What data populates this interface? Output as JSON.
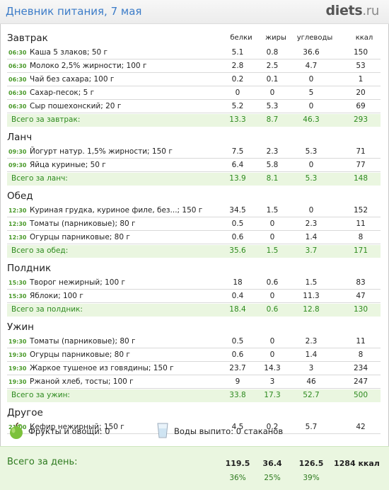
{
  "header": {
    "title": "Дневник питания, 7 мая",
    "logo_main": "diets",
    "logo_suffix": ".ru"
  },
  "columns": {
    "protein": "белки",
    "fat": "жиры",
    "carbs": "углеводы",
    "kcal": "ккал"
  },
  "meals": [
    {
      "title": "Завтрак",
      "items": [
        {
          "time": "06:30",
          "name": "Каша 5 злаков; 50 г",
          "p": "5.1",
          "f": "0.8",
          "c": "36.6",
          "k": "150"
        },
        {
          "time": "06:30",
          "name": "Молоко 2,5% жирности; 100 г",
          "p": "2.8",
          "f": "2.5",
          "c": "4.7",
          "k": "53"
        },
        {
          "time": "06:30",
          "name": "Чай без сахара; 100 г",
          "p": "0.2",
          "f": "0.1",
          "c": "0",
          "k": "1"
        },
        {
          "time": "06:30",
          "name": "Сахар-песок; 5 г",
          "p": "0",
          "f": "0",
          "c": "5",
          "k": "20"
        },
        {
          "time": "06:30",
          "name": "Сыр пошехонский; 20 г",
          "p": "5.2",
          "f": "5.3",
          "c": "0",
          "k": "69"
        }
      ],
      "total": {
        "label": "Всего за завтрак:",
        "p": "13.3",
        "f": "8.7",
        "c": "46.3",
        "k": "293"
      }
    },
    {
      "title": "Ланч",
      "items": [
        {
          "time": "09:30",
          "name": "Йогурт натур. 1,5% жирности; 150 г",
          "p": "7.5",
          "f": "2.3",
          "c": "5.3",
          "k": "71"
        },
        {
          "time": "09:30",
          "name": "Яйца куриные; 50 г",
          "p": "6.4",
          "f": "5.8",
          "c": "0",
          "k": "77"
        }
      ],
      "total": {
        "label": "Всего за ланч:",
        "p": "13.9",
        "f": "8.1",
        "c": "5.3",
        "k": "148"
      }
    },
    {
      "title": "Обед",
      "items": [
        {
          "time": "12:30",
          "name": "Куриная грудка, куриное филе, без...; 150 г",
          "p": "34.5",
          "f": "1.5",
          "c": "0",
          "k": "152"
        },
        {
          "time": "12:30",
          "name": "Томаты (парниковые); 80 г",
          "p": "0.5",
          "f": "0",
          "c": "2.3",
          "k": "11"
        },
        {
          "time": "12:30",
          "name": "Огурцы парниковые; 80 г",
          "p": "0.6",
          "f": "0",
          "c": "1.4",
          "k": "8"
        }
      ],
      "total": {
        "label": "Всего за обед:",
        "p": "35.6",
        "f": "1.5",
        "c": "3.7",
        "k": "171"
      }
    },
    {
      "title": "Полдник",
      "items": [
        {
          "time": "15:30",
          "name": "Творог нежирный; 100 г",
          "p": "18",
          "f": "0.6",
          "c": "1.5",
          "k": "83"
        },
        {
          "time": "15:30",
          "name": "Яблоки; 100 г",
          "p": "0.4",
          "f": "0",
          "c": "11.3",
          "k": "47"
        }
      ],
      "total": {
        "label": "Всего за полдник:",
        "p": "18.4",
        "f": "0.6",
        "c": "12.8",
        "k": "130"
      }
    },
    {
      "title": "Ужин",
      "items": [
        {
          "time": "19:30",
          "name": "Томаты (парниковые); 80 г",
          "p": "0.5",
          "f": "0",
          "c": "2.3",
          "k": "11"
        },
        {
          "time": "19:30",
          "name": "Огурцы парниковые; 80 г",
          "p": "0.6",
          "f": "0",
          "c": "1.4",
          "k": "8"
        },
        {
          "time": "19:30",
          "name": "Жаркое тушеное из говядины; 150 г",
          "p": "23.7",
          "f": "14.3",
          "c": "3",
          "k": "234"
        },
        {
          "time": "19:30",
          "name": "Ржаной хлеб, тосты; 100 г",
          "p": "9",
          "f": "3",
          "c": "46",
          "k": "247"
        }
      ],
      "total": {
        "label": "Всего за ужин:",
        "p": "33.8",
        "f": "17.3",
        "c": "52.7",
        "k": "500"
      }
    },
    {
      "title": "Другое",
      "items": [
        {
          "time": "21:00",
          "name": "Кефир нежирный; 150 г",
          "p": "4.5",
          "f": "0.2",
          "c": "5.7",
          "k": "42"
        }
      ],
      "total": null
    }
  ],
  "extras": {
    "fruit_label": "Фрукты и овощи: 0",
    "water_label": "Воды выпито: 0 стаканов",
    "fruit_icon": "green-apple-icon",
    "water_icon": "water-glass-icon"
  },
  "day_total": {
    "label": "Всего за день:",
    "p": "119.5",
    "f": "36.4",
    "c": "126.5",
    "kcal": "1284 ккал",
    "p_pct": "36%",
    "f_pct": "25%",
    "c_pct": "39%"
  },
  "colors": {
    "title": "#3c7cc8",
    "green": "#2d8a1e",
    "total_bg": "#eaf6e0"
  }
}
